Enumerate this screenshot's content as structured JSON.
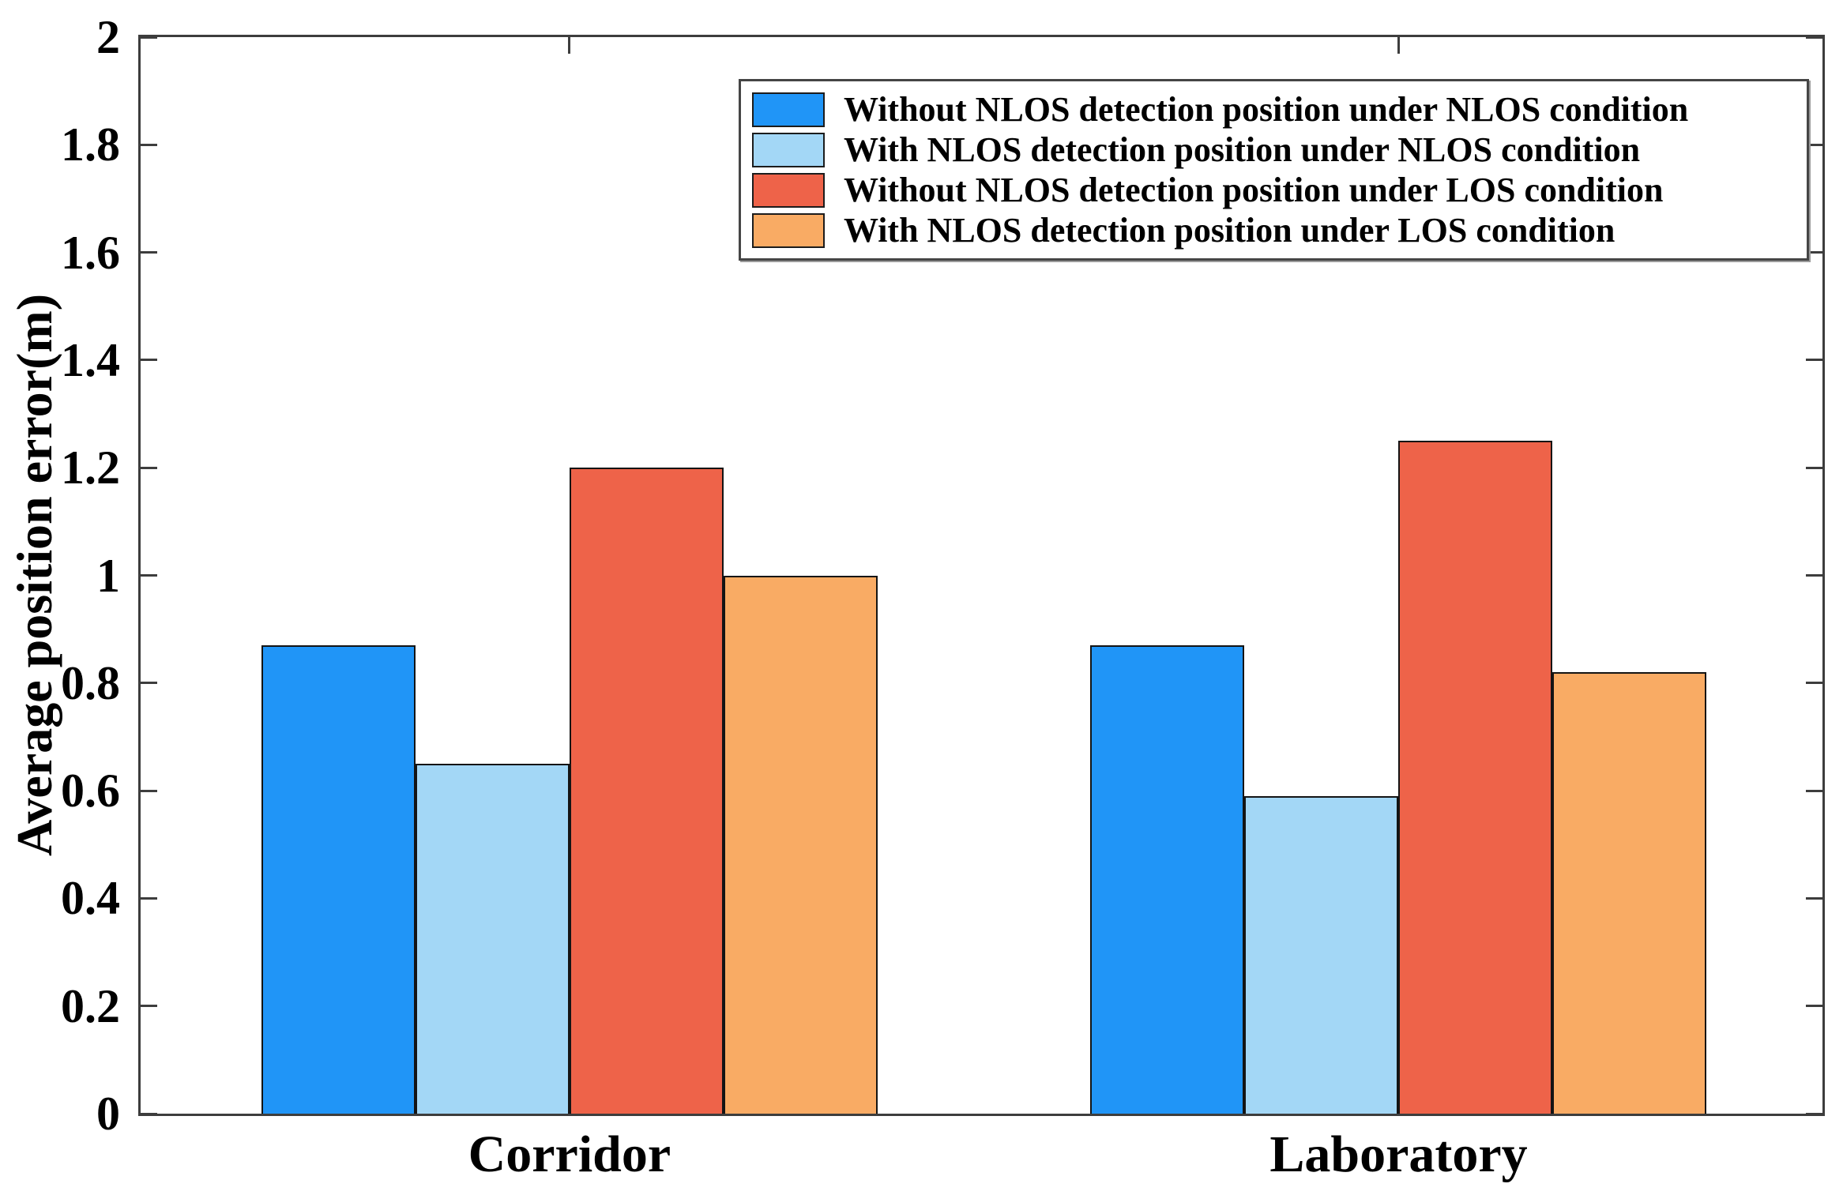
{
  "chart_data": {
    "type": "bar",
    "title": "",
    "ylabel": "Average position error(m)",
    "xlabel": "",
    "ylim": [
      0,
      2
    ],
    "ytick_step": 0.2,
    "yticks": [
      "0",
      "0.2",
      "0.4",
      "0.6",
      "0.8",
      "1",
      "1.2",
      "1.4",
      "1.6",
      "1.8",
      "2"
    ],
    "categories": [
      "Corridor",
      "Laboratory"
    ],
    "series": [
      {
        "name": "Without NLOS detection position under NLOS condition",
        "color": "#2095F7",
        "values": [
          0.87,
          0.87
        ]
      },
      {
        "name": "With NLOS detection position under NLOS condition",
        "color": "#A3D7F6",
        "values": [
          0.65,
          0.59
        ]
      },
      {
        "name": "Without NLOS detection position under LOS condition",
        "color": "#EE6349",
        "values": [
          1.2,
          1.25
        ]
      },
      {
        "name": "With NLOS detection position under LOS condition",
        "color": "#F9AB64",
        "values": [
          1.0,
          0.82
        ]
      }
    ],
    "bar_edge_color": "#141414",
    "grid": false,
    "legend_position": "inside upper right"
  }
}
